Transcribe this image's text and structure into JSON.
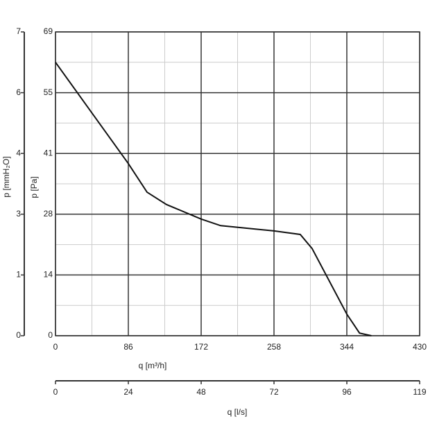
{
  "chart_data": {
    "type": "line",
    "x_label": "q [m³/h]",
    "x2_label": "q [l/s]",
    "y_label": "p [Pa]",
    "y2_label": "p [mmH₂O]",
    "x": [
      0,
      86,
      108.1,
      131,
      172,
      195,
      258,
      289,
      303,
      344,
      359,
      373
    ],
    "values": [
      62.1,
      39.1,
      32.6,
      29.8,
      26.5,
      25.0,
      23.8,
      23.0,
      19.8,
      4.9,
      0.6,
      0
    ],
    "color": "#111111",
    "xlim": [
      0,
      430
    ],
    "xticks": [
      0,
      86,
      172,
      258,
      344,
      430
    ],
    "x2lim": [
      0,
      119.44
    ],
    "x2ticks": [
      0,
      {
        "value": 23.89,
        "label": "24"
      },
      {
        "value": 47.78,
        "label": "48"
      },
      {
        "value": 71.67,
        "label": "72"
      },
      {
        "value": 95.56,
        "label": "96"
      },
      {
        "value": 119.44,
        "label": "119"
      }
    ],
    "ylim": [
      0,
      69
    ],
    "yticks": [
      0,
      {
        "value": 13.8,
        "label": "14"
      },
      {
        "value": 27.6,
        "label": "28"
      },
      {
        "value": 41.4,
        "label": "41"
      },
      {
        "value": 55.2,
        "label": "55"
      },
      69
    ],
    "y2lim": [
      0,
      7
    ],
    "y2ticks": [
      0,
      {
        "value": 1.4,
        "label": "1"
      },
      {
        "value": 2.8,
        "label": "3"
      },
      {
        "value": 4.2,
        "label": "4"
      },
      {
        "value": 5.6,
        "label": "6"
      },
      7
    ],
    "grid": true,
    "minor_grid": true
  }
}
